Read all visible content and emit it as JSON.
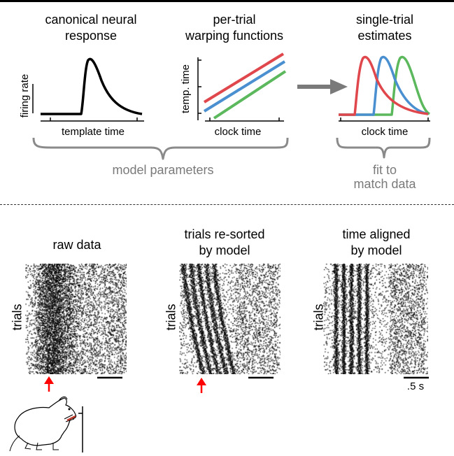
{
  "top": {
    "canonical": {
      "title_line1": "canonical neural",
      "title_line2": "response",
      "ylabel": "firing rate",
      "xlabel": "template time"
    },
    "warping": {
      "title_line1": "per-trial",
      "title_line2": "warping functions",
      "ylabel": "temp. time",
      "xlabel": "clock time",
      "colors": [
        "#e0474c",
        "#4a8fcf",
        "#5cb85c"
      ]
    },
    "estimates": {
      "title_line1": "single-trial",
      "title_line2": "estimates",
      "xlabel": "clock time",
      "colors": [
        "#e0474c",
        "#4a8fcf",
        "#5cb85c"
      ]
    },
    "brace_left_label": "model parameters",
    "brace_right_line1": "fit to",
    "brace_right_line2": "match data",
    "arrow_color": "#7a7a7a"
  },
  "bottom": {
    "raw": {
      "title": "raw data",
      "ylabel": "trials"
    },
    "resorted": {
      "title_line1": "trials re-sorted",
      "title_line2": "by model",
      "ylabel": "trials"
    },
    "aligned": {
      "title_line1": "time aligned",
      "title_line2": "by model",
      "ylabel": "trials"
    },
    "scale_label": ".5 s",
    "marker_color": "#ff0000"
  }
}
